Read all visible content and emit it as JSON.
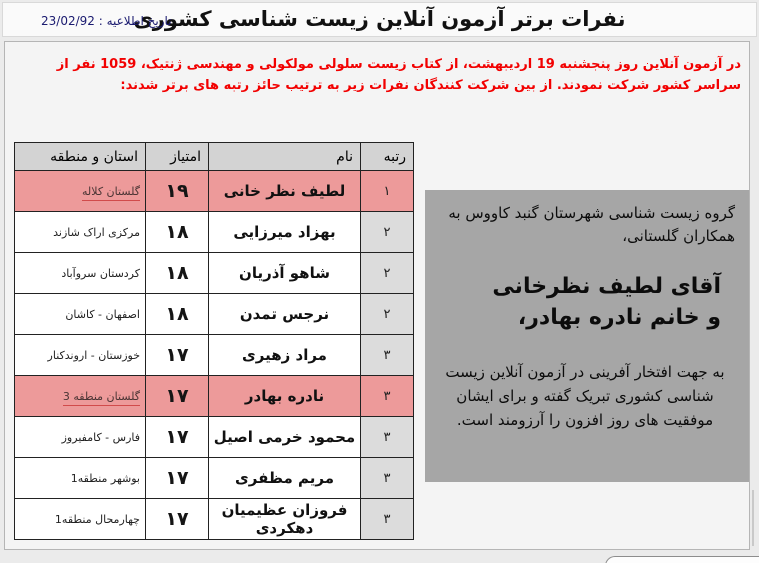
{
  "header": {
    "title": "نفرات برتر آزمون آنلاین زیست شناسی کشوری",
    "date_label": "تاریخ اطلاعیه :",
    "date_value": "23/02/92"
  },
  "announcement": "در آزمون آنلاین روز پنجشنبه 19 اردیبهشت، از کتاب زیست سلولی مولکولی و مهندسی ژنتیک، 1059 نفر از سراسر کشور شرکت نمودند. از بین شرکت کنندگان نفرات زیر به ترتیب حائز رتبه های برتر شدند:",
  "table": {
    "headers": {
      "rank": "رتبه",
      "name": "نام",
      "score": "امتیاز",
      "province": "استان و منطقه"
    },
    "rows": [
      {
        "rank": "۱",
        "name": "لطیف نظر خانی",
        "score": "۱۹",
        "province": "گلستان کلاله",
        "highlighted": true
      },
      {
        "rank": "۲",
        "name": "بهزاد میرزایی",
        "score": "۱۸",
        "province": "مرکزی اراک شازند",
        "highlighted": false
      },
      {
        "rank": "۲",
        "name": "شاهو آذریان",
        "score": "۱۸",
        "province": "کردستان سروآباد",
        "highlighted": false
      },
      {
        "rank": "۲",
        "name": "نرجس تمدن",
        "score": "۱۸",
        "province": "اصفهان - کاشان",
        "highlighted": false
      },
      {
        "rank": "۳",
        "name": "مراد زهیری",
        "score": "۱۷",
        "province": "خوزستان - اروندکنار",
        "highlighted": false
      },
      {
        "rank": "۳",
        "name": "نادره بهادر",
        "score": "۱۷",
        "province": "گلستان منطقه 3",
        "highlighted": true
      },
      {
        "rank": "۳",
        "name": "محمود خرمی اصیل",
        "score": "۱۷",
        "province": "فارس - کامفیروز",
        "highlighted": false
      },
      {
        "rank": "۳",
        "name": "مریم مظفری",
        "score": "۱۷",
        "province": "بوشهر منطقه1",
        "highlighted": false
      },
      {
        "rank": "۳",
        "name": "فروزان عظیمیان دهکردی",
        "score": "۱۷",
        "province": "چهارمحال منطقه1",
        "highlighted": false
      }
    ]
  },
  "congrats": {
    "intro": "گروه زیست شناسی شهرستان گنبد کاووس به همکاران گلستانی،",
    "name1": "آقای لطیف نظرخانی",
    "name2": "و خانم نادره بهادر،",
    "body": "به جهت افتخار آفرینی در آزمون آنلاین زیست شناسی کشوری تبریک گفته و برای ایشان موفقیت های روز افزون را آرزومند است."
  },
  "colors": {
    "announcement_red": "#f20000",
    "highlight_pink": "#ed9a9a",
    "table_header_gray": "#d3d3d3",
    "rank_cell_gray": "#dcdcdc",
    "congrats_box_gray": "#a6a6a6",
    "date_navy": "#1b1b70"
  }
}
